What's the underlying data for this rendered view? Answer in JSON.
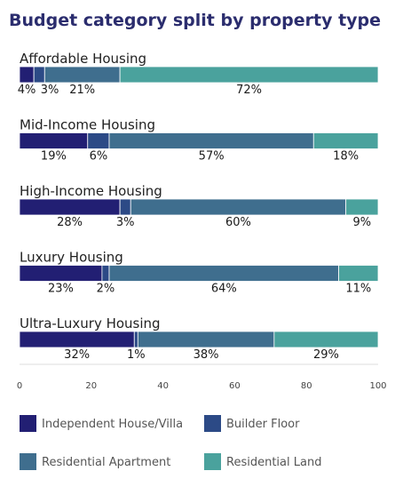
{
  "chart_data": {
    "type": "bar",
    "orientation": "horizontal",
    "stacked": true,
    "title": "Budget category split by property type",
    "categories": [
      "Affordable Housing",
      "Mid-Income Housing",
      "High-Income Housing",
      "Luxury Housing",
      "Ultra-Luxury Housing"
    ],
    "series": [
      {
        "name": "Independent House/Villa",
        "values": [
          4,
          19,
          28,
          23,
          32
        ],
        "labels": [
          "4%",
          "19%",
          "28%",
          "23%",
          "32%"
        ],
        "color": "#221f73"
      },
      {
        "name": "Builder Floor",
        "values": [
          3,
          6,
          3,
          2,
          1
        ],
        "labels": [
          "3%",
          "6%",
          "3%",
          "2%",
          "1%"
        ],
        "color": "#2c4a86"
      },
      {
        "name": "Residential Apartment",
        "values": [
          21,
          57,
          60,
          64,
          38
        ],
        "labels": [
          "21%",
          "57%",
          "60%",
          "64%",
          "38%"
        ],
        "color": "#3f6e8e"
      },
      {
        "name": "Residential Land",
        "values": [
          72,
          18,
          9,
          11,
          29
        ],
        "labels": [
          "72%",
          "18%",
          "9%",
          "11%",
          "29%"
        ],
        "color": "#4aa29d"
      }
    ],
    "xlim": [
      0,
      100
    ],
    "xticks": [
      "0",
      "20",
      "40",
      "60",
      "80",
      "100"
    ],
    "grid": false,
    "legend_position": "bottom"
  }
}
